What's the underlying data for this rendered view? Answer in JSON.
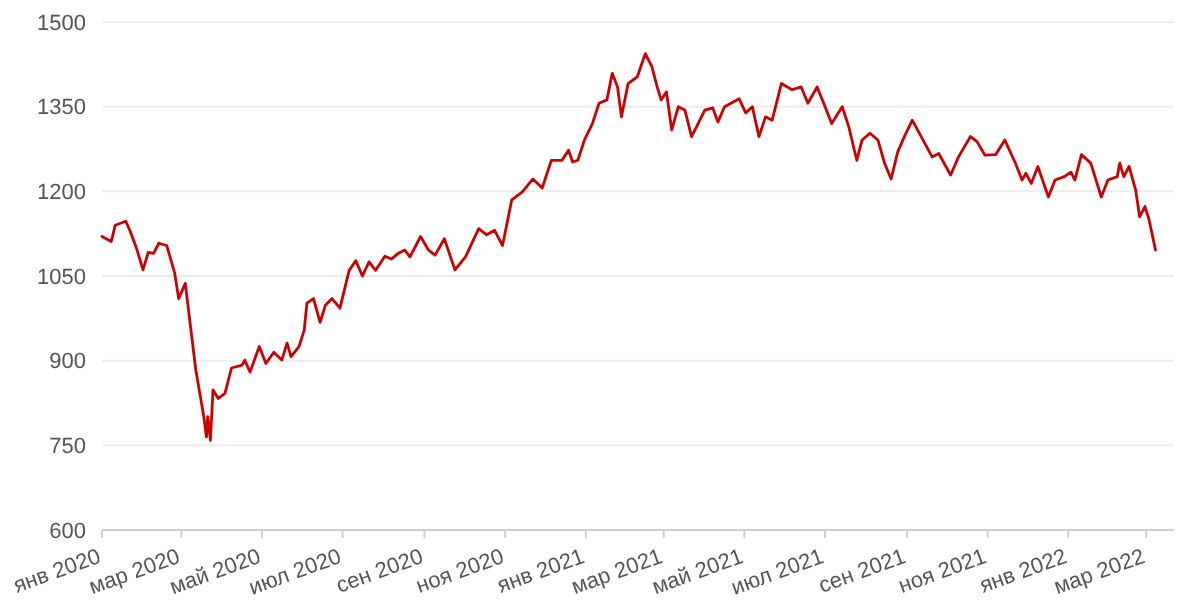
{
  "chart_data": {
    "type": "line",
    "color": "#cc0000",
    "grid": "y",
    "marker": "none",
    "line_style": "solid",
    "x": [
      "2020-01-01",
      "2020-01-08",
      "2020-01-11",
      "2020-01-19",
      "2020-01-22",
      "2020-01-27",
      "2020-02-01",
      "2020-02-05",
      "2020-02-09",
      "2020-02-13",
      "2020-02-19",
      "2020-02-25",
      "2020-02-28",
      "2020-03-04",
      "2020-03-08",
      "2020-03-12",
      "2020-03-18",
      "2020-03-20",
      "2020-03-21",
      "2020-03-23",
      "2020-03-25",
      "2020-03-29",
      "2020-04-03",
      "2020-04-08",
      "2020-04-16",
      "2020-04-18",
      "2020-04-22",
      "2020-04-29",
      "2020-05-04",
      "2020-05-10",
      "2020-05-16",
      "2020-05-20",
      "2020-05-23",
      "2020-05-29",
      "2020-06-02",
      "2020-06-04",
      "2020-06-09",
      "2020-06-14",
      "2020-06-18",
      "2020-06-23",
      "2020-06-29",
      "2020-07-06",
      "2020-07-11",
      "2020-07-16",
      "2020-07-21",
      "2020-07-26",
      "2020-08-02",
      "2020-08-07",
      "2020-08-12",
      "2020-08-17",
      "2020-08-21",
      "2020-08-29",
      "2020-09-04",
      "2020-09-09",
      "2020-09-16",
      "2020-09-24",
      "2020-10-02",
      "2020-10-12",
      "2020-10-18",
      "2020-10-24",
      "2020-10-30",
      "2020-11-06",
      "2020-11-14",
      "2020-11-22",
      "2020-11-29",
      "2020-12-06",
      "2020-12-14",
      "2020-12-19",
      "2020-12-22",
      "2020-12-26",
      "2020-12-31",
      "2021-01-06",
      "2021-01-11",
      "2021-01-17",
      "2021-01-21",
      "2021-01-25",
      "2021-01-28",
      "2021-02-02",
      "2021-02-09",
      "2021-02-15",
      "2021-02-20",
      "2021-02-24",
      "2021-02-27",
      "2021-03-03",
      "2021-03-07",
      "2021-03-12",
      "2021-03-17",
      "2021-03-22",
      "2021-03-27",
      "2021-04-01",
      "2021-04-07",
      "2021-04-11",
      "2021-04-16",
      "2021-04-27",
      "2021-05-02",
      "2021-05-07",
      "2021-05-12",
      "2021-05-17",
      "2021-05-22",
      "2021-05-29",
      "2021-06-06",
      "2021-06-13",
      "2021-06-18",
      "2021-06-25",
      "2021-06-30",
      "2021-07-06",
      "2021-07-14",
      "2021-07-19",
      "2021-07-25",
      "2021-07-29",
      "2021-08-04",
      "2021-08-10",
      "2021-08-15",
      "2021-08-20",
      "2021-08-25",
      "2021-08-30",
      "2021-09-05",
      "2021-09-09",
      "2021-09-20",
      "2021-09-25",
      "2021-10-04",
      "2021-10-10",
      "2021-10-19",
      "2021-10-24",
      "2021-10-30",
      "2021-11-07",
      "2021-11-14",
      "2021-11-22",
      "2021-11-27",
      "2021-11-30",
      "2021-12-04",
      "2021-12-09",
      "2021-12-17",
      "2021-12-22",
      "2021-12-29",
      "2022-01-03",
      "2022-01-06",
      "2022-01-11",
      "2022-01-18",
      "2022-01-26",
      "2022-01-31",
      "2022-02-07",
      "2022-02-09",
      "2022-02-12",
      "2022-02-16",
      "2022-02-21",
      "2022-02-24",
      "2022-02-28",
      "2022-03-03",
      "2022-03-08"
    ],
    "values": [
      1120,
      1111,
      1140,
      1147,
      1131,
      1100,
      1061,
      1092,
      1090,
      1108,
      1104,
      1055,
      1010,
      1037,
      960,
      883,
      801,
      765,
      801,
      759,
      848,
      833,
      842,
      887,
      892,
      901,
      880,
      925,
      895,
      915,
      901,
      931,
      907,
      925,
      954,
      1002,
      1010,
      968,
      998,
      1010,
      993,
      1060,
      1077,
      1050,
      1075,
      1060,
      1085,
      1080,
      1090,
      1096,
      1084,
      1120,
      1096,
      1087,
      1116,
      1061,
      1084,
      1134,
      1123,
      1131,
      1104,
      1185,
      1199,
      1222,
      1206,
      1255,
      1255,
      1273,
      1252,
      1255,
      1291,
      1320,
      1356,
      1362,
      1409,
      1385,
      1332,
      1391,
      1403,
      1444,
      1421,
      1385,
      1362,
      1376,
      1309,
      1350,
      1344,
      1297,
      1320,
      1344,
      1348,
      1323,
      1350,
      1364,
      1339,
      1350,
      1297,
      1332,
      1326,
      1391,
      1380,
      1385,
      1356,
      1385,
      1356,
      1320,
      1350,
      1314,
      1255,
      1291,
      1303,
      1291,
      1250,
      1222,
      1270,
      1297,
      1326,
      1309,
      1261,
      1267,
      1229,
      1261,
      1297,
      1288,
      1264,
      1265,
      1291,
      1250,
      1220,
      1232,
      1214,
      1244,
      1190,
      1220,
      1226,
      1234,
      1220,
      1265,
      1250,
      1190,
      1220,
      1226,
      1250,
      1226,
      1244,
      1202,
      1155,
      1173,
      1151,
      1096
    ],
    "xlim": [
      "2020-01-01",
      "2022-03-22"
    ],
    "xticks": [
      {
        "value": "2020-01-01",
        "label": "янв 2020"
      },
      {
        "value": "2020-03-01",
        "label": "мар 2020"
      },
      {
        "value": "2020-05-01",
        "label": "май 2020"
      },
      {
        "value": "2020-07-01",
        "label": "июл 2020"
      },
      {
        "value": "2020-09-01",
        "label": "сен 2020"
      },
      {
        "value": "2020-11-01",
        "label": "ноя 2020"
      },
      {
        "value": "2021-01-01",
        "label": "янв 2021"
      },
      {
        "value": "2021-03-01",
        "label": "мар 2021"
      },
      {
        "value": "2021-05-01",
        "label": "май 2021"
      },
      {
        "value": "2021-07-01",
        "label": "июл 2021"
      },
      {
        "value": "2021-09-01",
        "label": "сен 2021"
      },
      {
        "value": "2021-11-01",
        "label": "ноя 2021"
      },
      {
        "value": "2022-01-01",
        "label": "янв 2022"
      },
      {
        "value": "2022-03-01",
        "label": "мар 2022"
      }
    ],
    "ylim": [
      600,
      1500
    ],
    "yticks": [
      600,
      750,
      900,
      1050,
      1200,
      1350,
      1500
    ]
  }
}
